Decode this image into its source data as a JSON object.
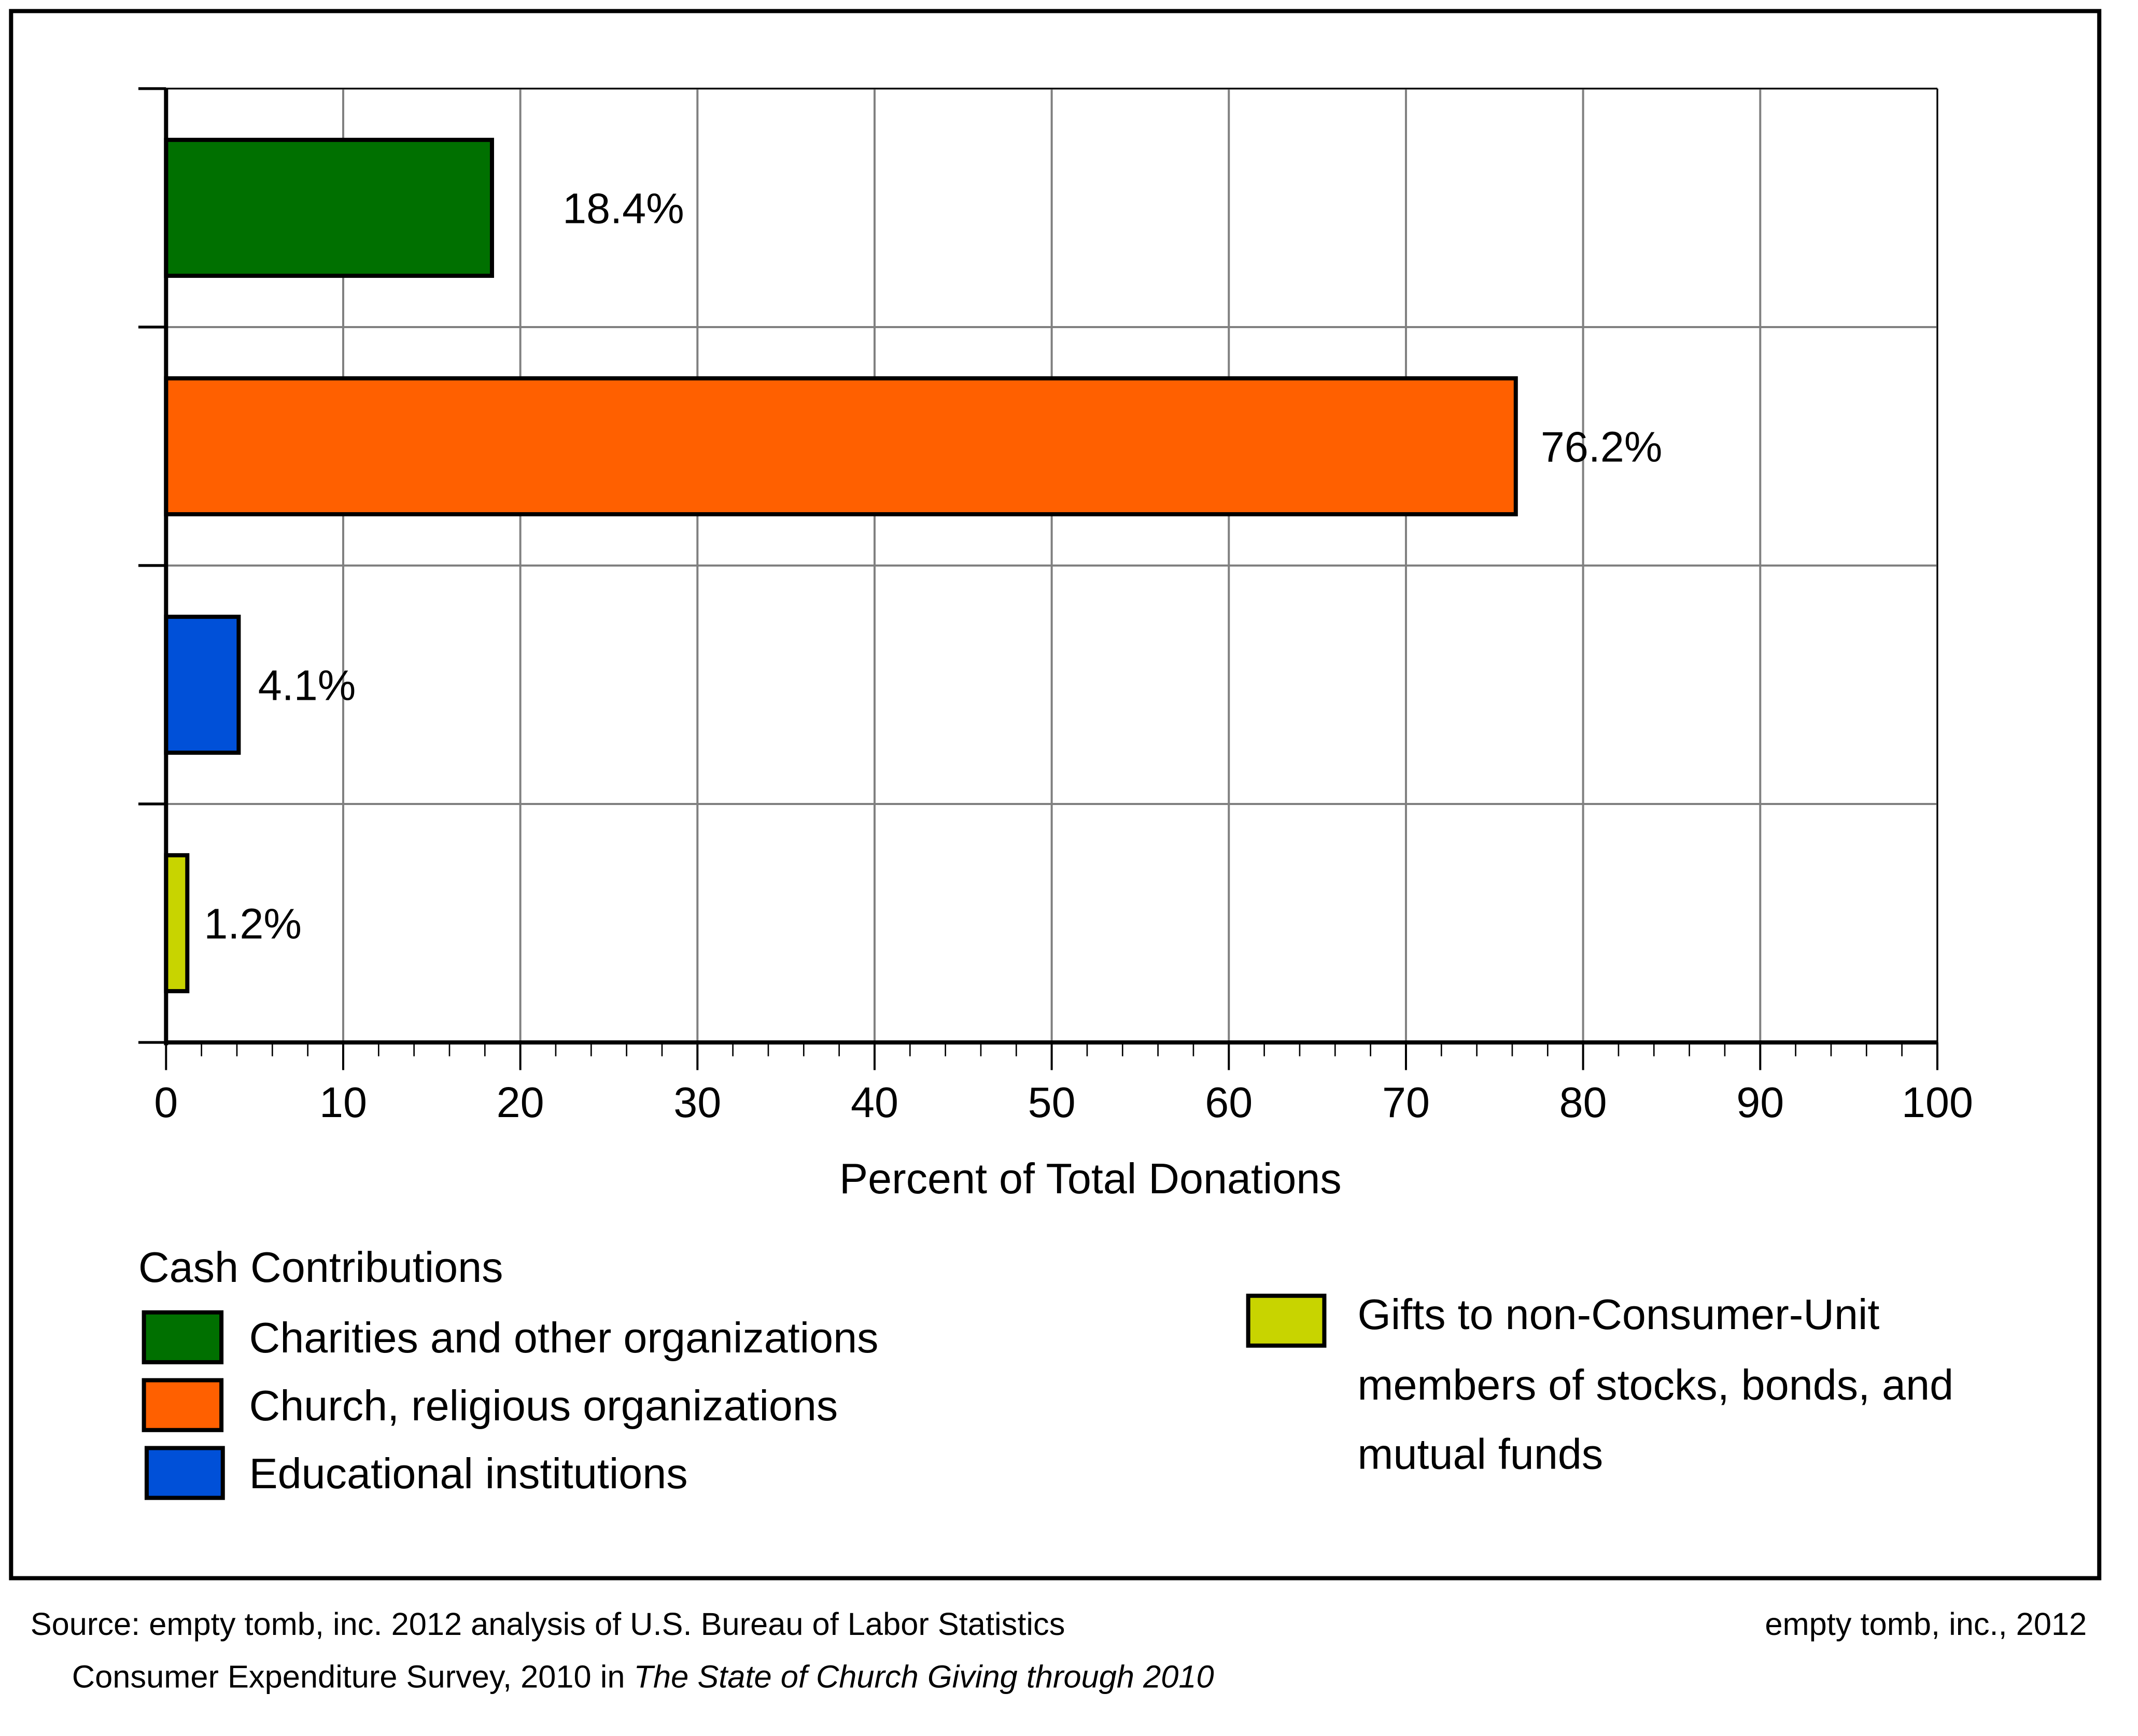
{
  "chart_data": {
    "type": "bar",
    "orientation": "horizontal",
    "title": "",
    "xlabel": "Percent of Total Donations",
    "ylabel": "",
    "xlim": [
      0,
      100
    ],
    "x_major_ticks": [
      0,
      10,
      20,
      30,
      40,
      50,
      60,
      70,
      80,
      90,
      100
    ],
    "x_minor_tick_step": 2,
    "grid": true,
    "categories": [
      "Charities and other organizations",
      "Church, religious organizations",
      "Educational institutions",
      "Gifts to non-Consumer-Unit members of stocks, bonds, and mutual funds"
    ],
    "values": [
      18.4,
      76.2,
      4.1,
      1.2
    ],
    "data_labels": [
      "18.4%",
      "76.2%",
      "4.1%",
      "1.2%"
    ],
    "colors": [
      "#007000",
      "#ff6000",
      "#0050d8",
      "#c8d400"
    ],
    "legend": {
      "title": "Cash Contributions",
      "placement": "bottom",
      "entries": [
        {
          "label": "Charities and other organizations",
          "color": "#007000"
        },
        {
          "label": "Church, religious organizations",
          "color": "#ff6000"
        },
        {
          "label": "Educational institutions",
          "color": "#0050d8"
        },
        {
          "label_lines": [
            "Gifts to non-Consumer-Unit",
            "members of stocks, bonds, and",
            "mutual funds"
          ],
          "color": "#c8d400"
        }
      ]
    }
  },
  "footer": {
    "source_line1": "Source: empty tomb, inc. 2012 analysis of U.S. Bureau of Labor Statistics",
    "source_line2_prefix": "Consumer Expenditure Survey, 2010 in ",
    "source_line2_italic": "The State of Church Giving through 2010",
    "credit": "empty tomb, inc., 2012"
  }
}
